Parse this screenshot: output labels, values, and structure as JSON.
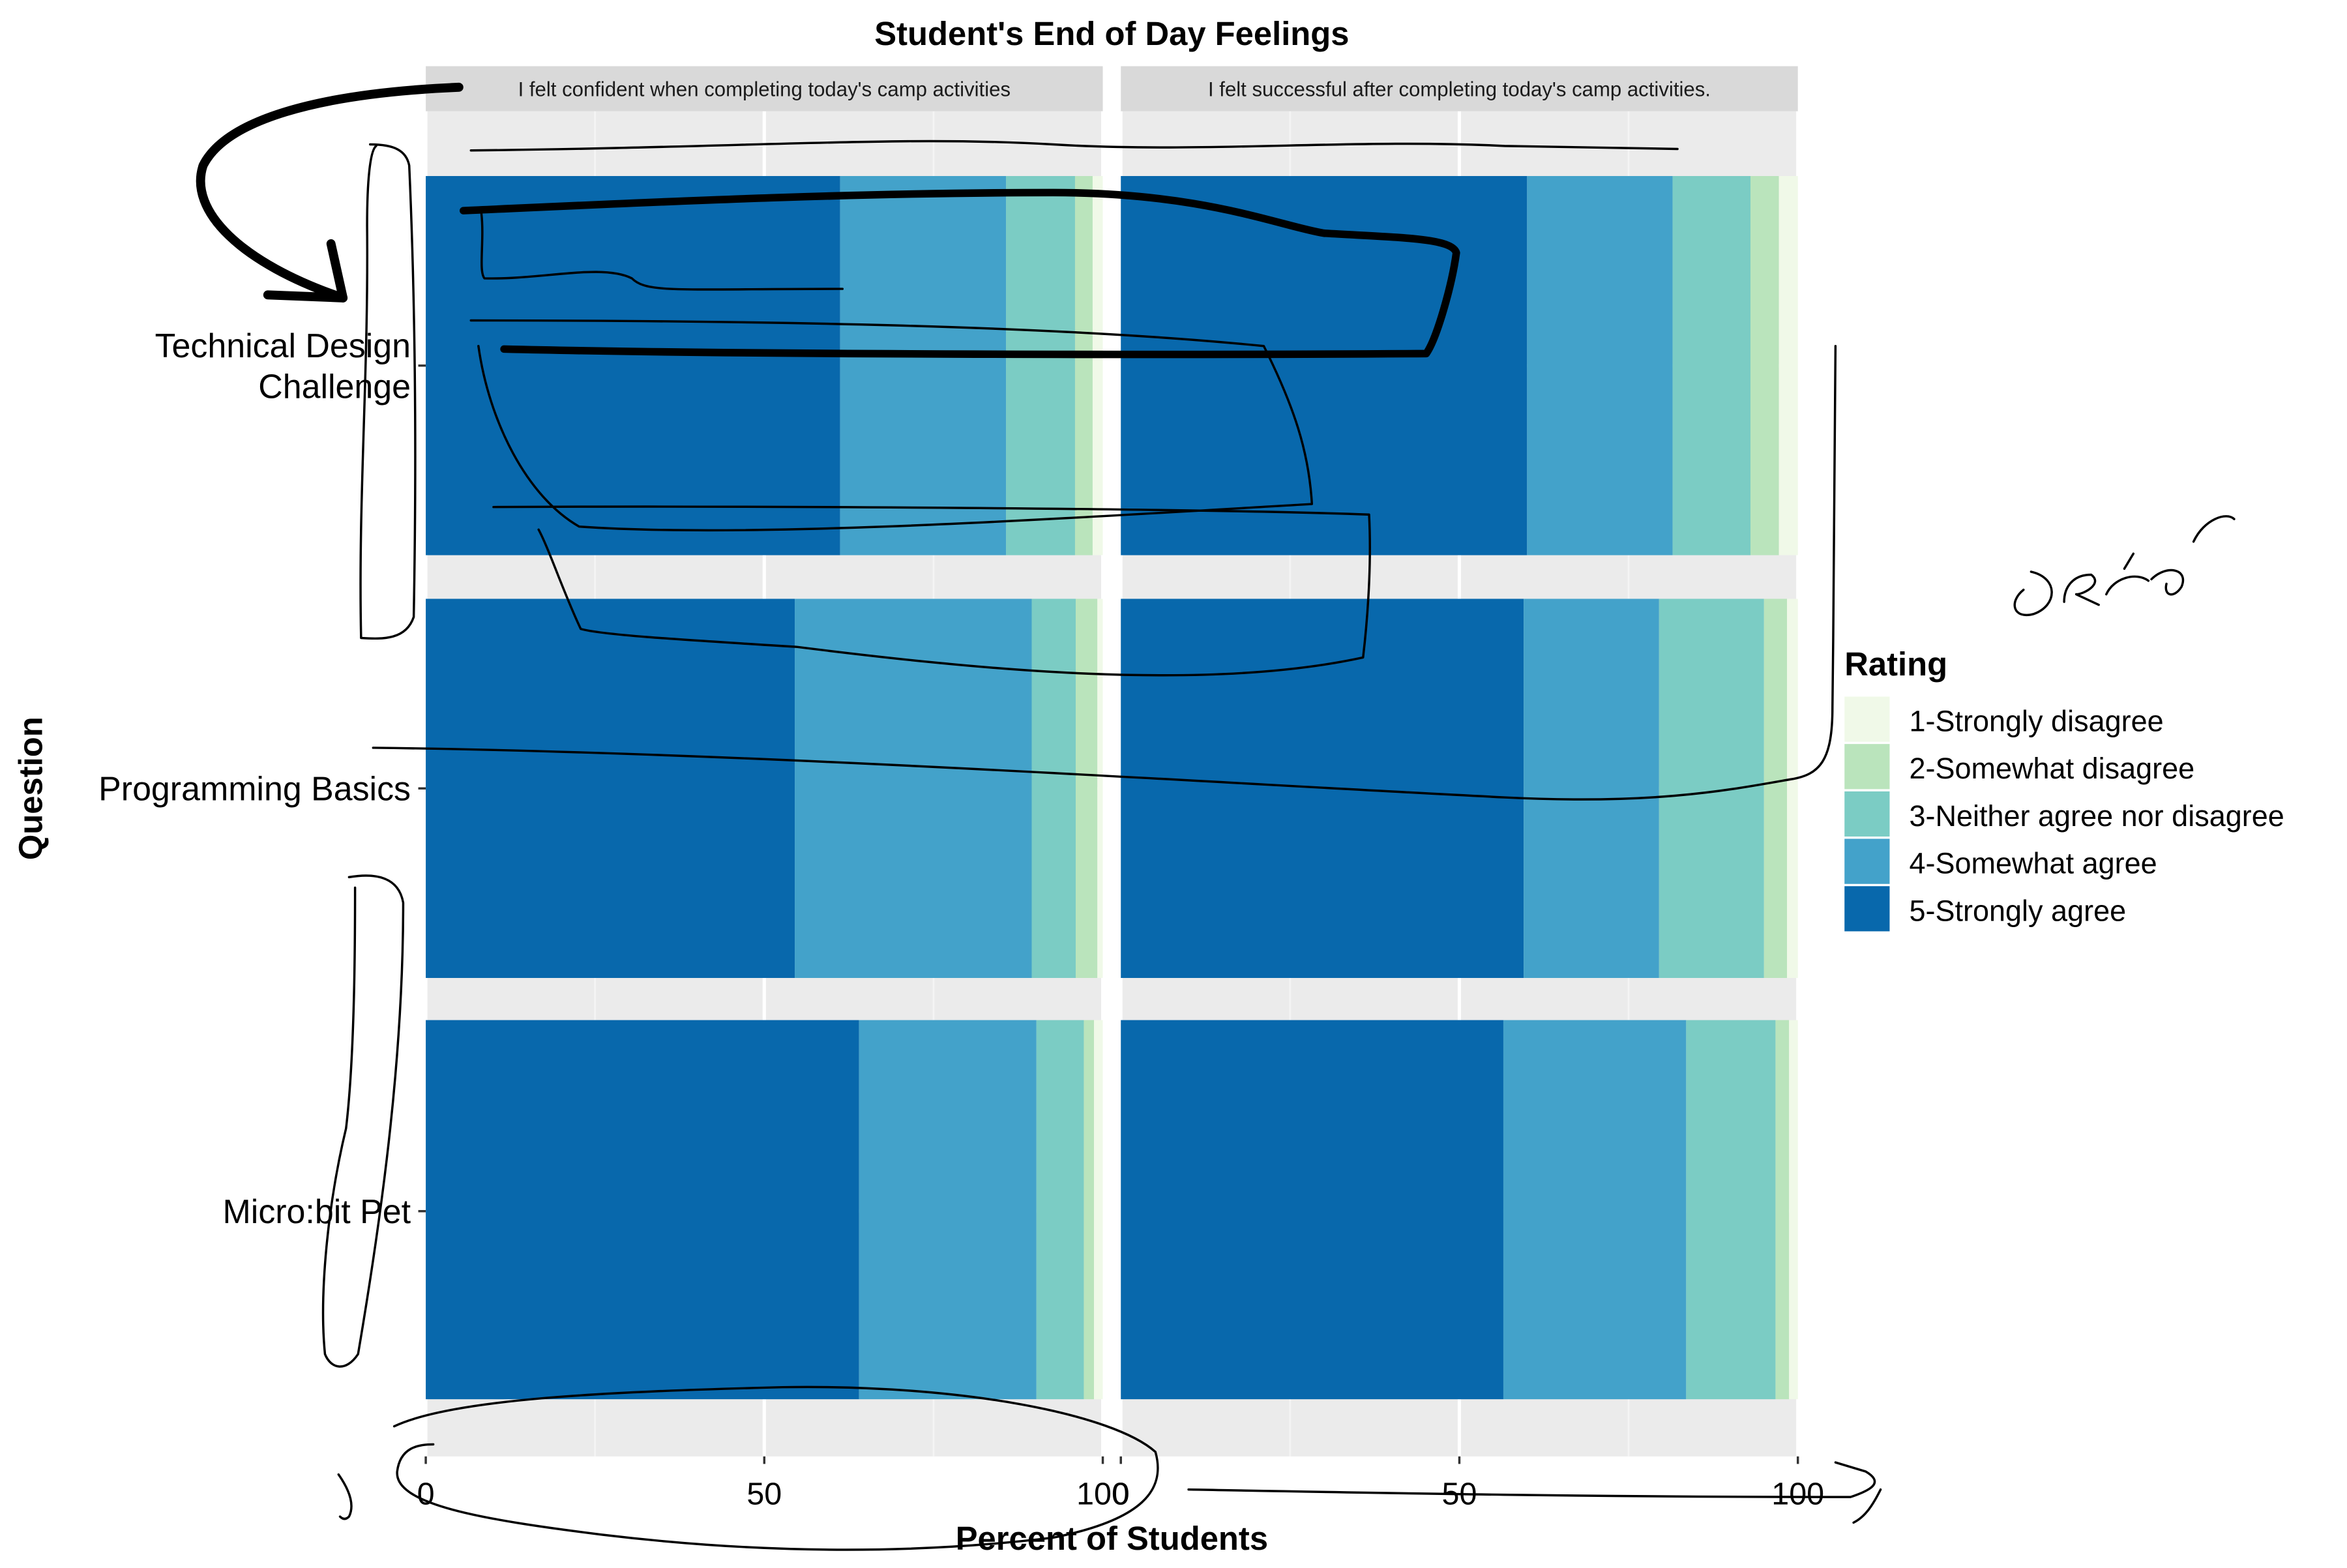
{
  "chart_data": {
    "type": "bar",
    "orientation": "horizontal",
    "stacked": true,
    "title": "Student's End of Day Feelings",
    "xlabel": "Percent of Students",
    "ylabel": "Question",
    "xlim": [
      0,
      100
    ],
    "x_ticks": [
      0,
      50,
      100
    ],
    "x_tick_labels": [
      "0",
      "50",
      "100"
    ],
    "grid": true,
    "legend_title": "Rating",
    "legend_position": "right",
    "categories": [
      "Technical Design Challenge",
      "Programming Basics",
      "Micro:bit Pet"
    ],
    "category_labels": [
      [
        "Technical Design",
        "Challenge"
      ],
      [
        "Programming Basics"
      ],
      [
        "Micro:bit Pet"
      ]
    ],
    "series_names": [
      "1-Strongly disagree",
      "2-Somewhat disagree",
      "3-Neither agree nor disagree",
      "4-Somewhat agree",
      "5-Strongly agree"
    ],
    "colors": {
      "1-Strongly disagree": "#f0f9e8",
      "2-Somewhat disagree": "#bae4bc",
      "3-Neither agree nor disagree": "#7bccc4",
      "4-Somewhat agree": "#43a2ca",
      "5-Strongly agree": "#0868ac"
    },
    "panels": [
      {
        "strip": "I felt confident when completing today's camp activities",
        "rows": [
          {
            "category": "Technical Design Challenge",
            "values": {
              "5-Strongly agree": 61.2,
              "4-Somewhat agree": 24.5,
              "3-Neither agree nor disagree": 10.2,
              "2-Somewhat disagree": 2.6,
              "1-Strongly disagree": 1.5
            }
          },
          {
            "category": "Programming Basics",
            "values": {
              "5-Strongly agree": 54.5,
              "4-Somewhat agree": 35.0,
              "3-Neither agree nor disagree": 6.5,
              "2-Somewhat disagree": 3.2,
              "1-Strongly disagree": 0.8
            }
          },
          {
            "category": "Micro:bit Pet",
            "values": {
              "5-Strongly agree": 64.0,
              "4-Somewhat agree": 26.2,
              "3-Neither agree nor disagree": 7.0,
              "2-Somewhat disagree": 1.5,
              "1-Strongly disagree": 1.3
            }
          }
        ]
      },
      {
        "strip": "I felt successful after completing today's camp activities.",
        "rows": [
          {
            "category": "Technical Design Challenge",
            "values": {
              "5-Strongly agree": 60.0,
              "4-Somewhat agree": 21.5,
              "3-Neither agree nor disagree": 11.5,
              "2-Somewhat disagree": 4.2,
              "1-Strongly disagree": 2.8
            }
          },
          {
            "category": "Programming Basics",
            "values": {
              "5-Strongly agree": 59.5,
              "4-Somewhat agree": 20.0,
              "3-Neither agree nor disagree": 15.5,
              "2-Somewhat disagree": 3.4,
              "1-Strongly disagree": 1.6
            }
          },
          {
            "category": "Micro:bit Pet",
            "values": {
              "5-Strongly agree": 56.5,
              "4-Somewhat agree": 27.0,
              "3-Neither agree nor disagree": 13.2,
              "2-Somewhat disagree": 2.0,
              "1-Strongly disagree": 1.3
            }
          }
        ]
      }
    ]
  }
}
